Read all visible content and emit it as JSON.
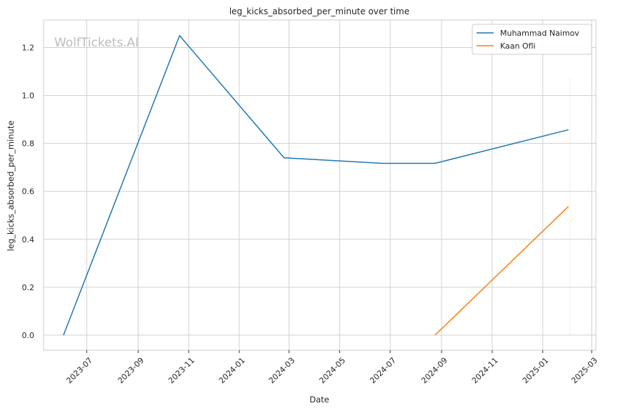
{
  "chart_data": {
    "type": "line",
    "title": "leg_kicks_absorbed_per_minute over time",
    "xlabel": "Date",
    "ylabel": "leg_kicks_absorbed_per_minute",
    "watermark": "WolfTickets.AI",
    "x_tick_labels": [
      "2023-07",
      "2023-09",
      "2023-11",
      "2024-01",
      "2024-03",
      "2024-05",
      "2024-07",
      "2024-09",
      "2024-11",
      "2025-01",
      "2025-03"
    ],
    "y_tick_labels": [
      "0.0",
      "0.2",
      "0.4",
      "0.6",
      "0.8",
      "1.0",
      "1.2"
    ],
    "xlim": [
      "2023-05-10",
      "2025-03-06"
    ],
    "ylim": [
      -0.063,
      1.315
    ],
    "grid": true,
    "legend_position": "top-right",
    "series": [
      {
        "name": "Muhammad Naimov",
        "color": "#1f77b4",
        "points": [
          {
            "x": "2023-06-03",
            "y": 0.0
          },
          {
            "x": "2023-10-21",
            "y": 1.25
          },
          {
            "x": "2024-02-24",
            "y": 0.74
          },
          {
            "x": "2024-06-22",
            "y": 0.717
          },
          {
            "x": "2024-08-24",
            "y": 0.717
          },
          {
            "x": "2025-02-01",
            "y": 0.857
          }
        ]
      },
      {
        "name": "Kaan Ofli",
        "color": "#ff7f0e",
        "points": [
          {
            "x": "2024-08-24",
            "y": 0.0
          },
          {
            "x": "2025-02-01",
            "y": 0.537
          }
        ]
      }
    ]
  }
}
